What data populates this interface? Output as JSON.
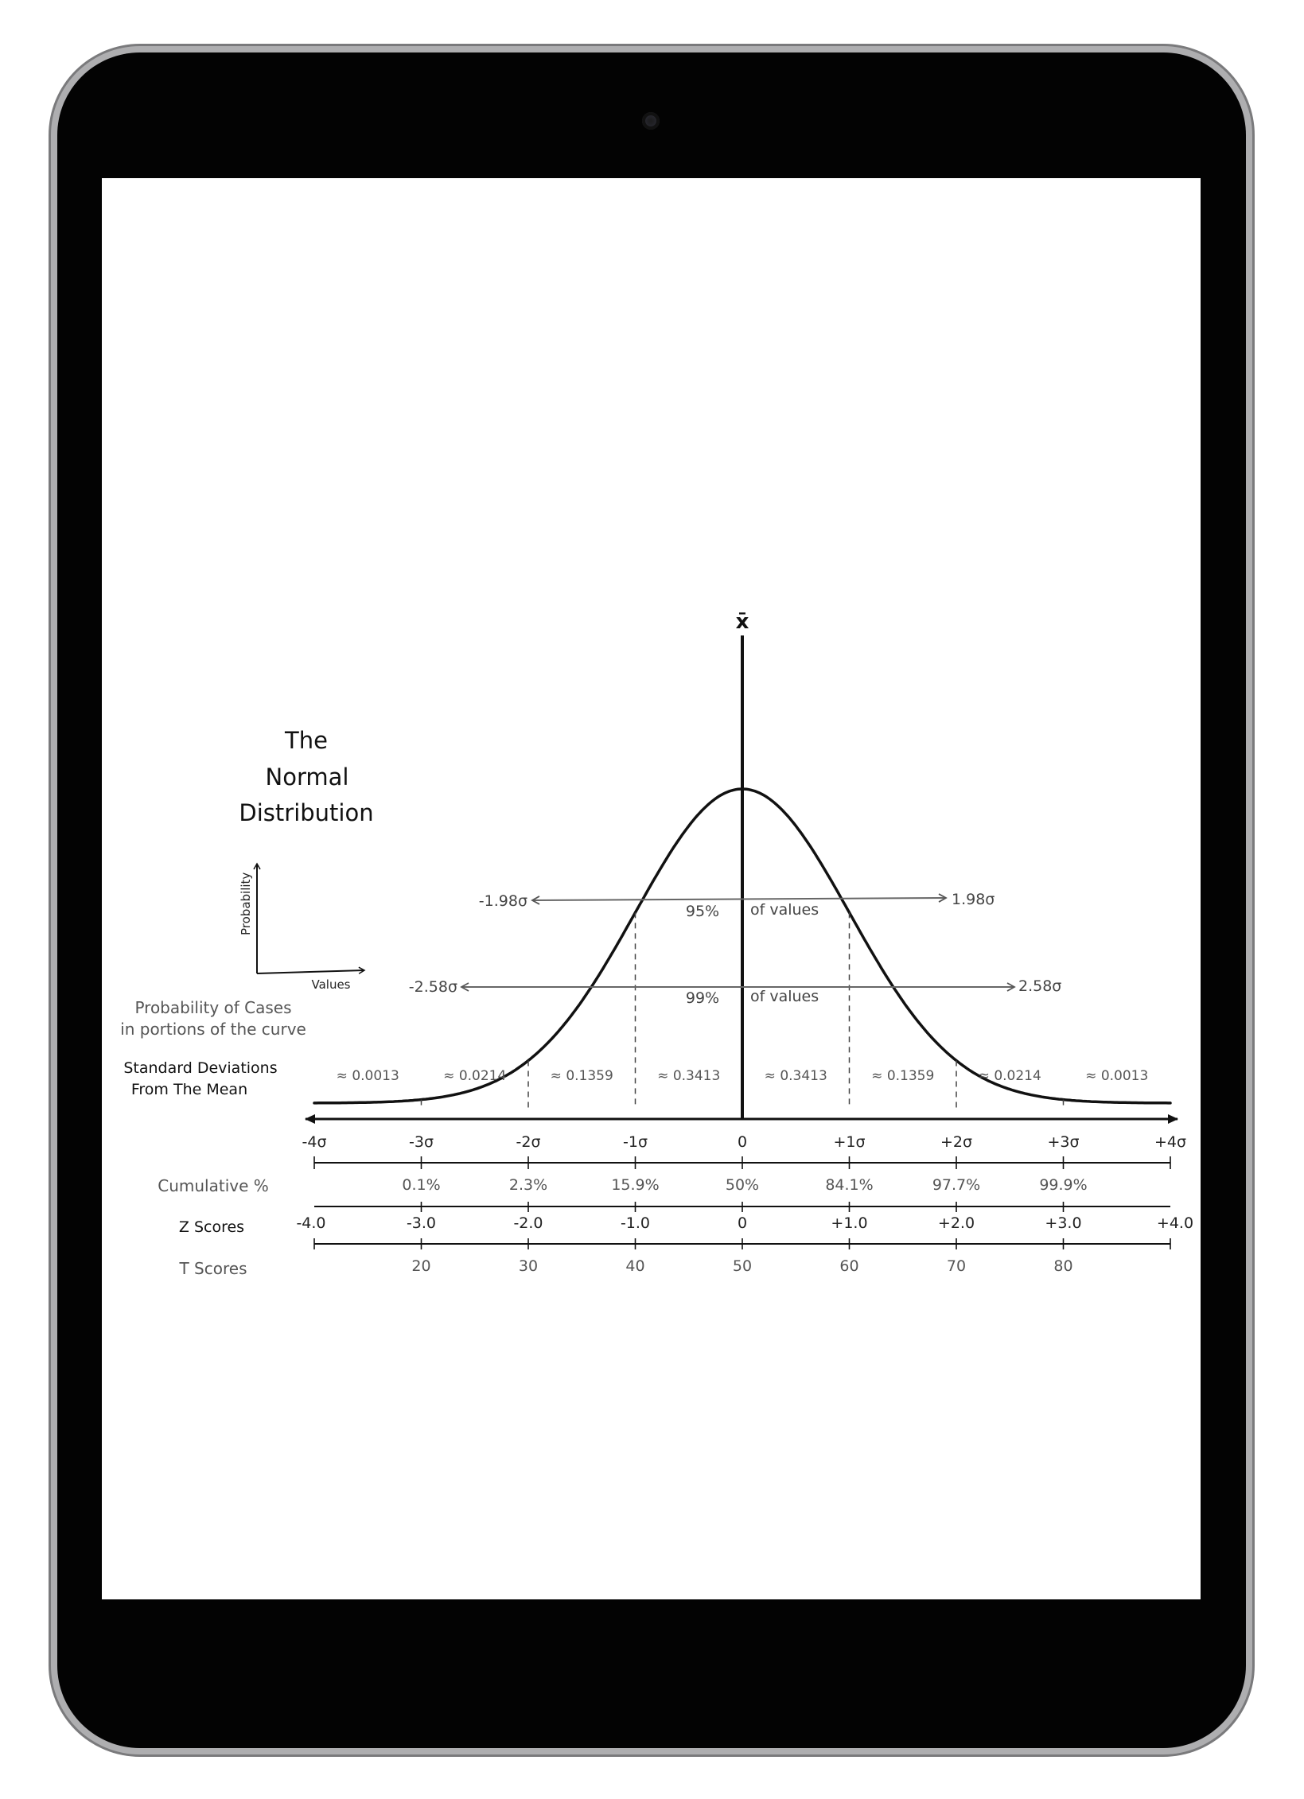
{
  "diagram": {
    "title_line1": "The",
    "title_line2": "Normal",
    "title_line3": "Distribution",
    "mean_symbol": "x̄",
    "mini_axes": {
      "ylabel": "Probability",
      "xlabel": "Values"
    },
    "prob_label_line1": "Probability of Cases",
    "prob_label_line2": "in portions of the curve",
    "probabilities": [
      "≈ 0.0013",
      "≈ 0.0214",
      "≈ 0.1359",
      "≈ 0.3413",
      "≈ 0.3413",
      "≈ 0.1359",
      "≈ 0.0214",
      "≈ 0.0013"
    ],
    "interval_95": {
      "left": "-1.98σ",
      "right": "1.98σ",
      "pct": "95%",
      "text": "of values"
    },
    "interval_99": {
      "left": "-2.58σ",
      "right": "2.58σ",
      "pct": "99%",
      "text": "of values"
    },
    "sd_label_line1": "Standard Deviations",
    "sd_label_line2": "From The Mean",
    "sd_ticks": [
      "-4σ",
      "-3σ",
      "-2σ",
      "-1σ",
      "0",
      "+1σ",
      "+2σ",
      "+3σ",
      "+4σ"
    ],
    "cumulative_label": "Cumulative %",
    "cumulative": [
      "0.1%",
      "2.3%",
      "15.9%",
      "50%",
      "84.1%",
      "97.7%",
      "99.9%"
    ],
    "z_label": "Z Scores",
    "z_scores": [
      "-4.0",
      "-3.0",
      "-2.0",
      "-1.0",
      "0",
      "+1.0",
      "+2.0",
      "+3.0",
      "+4.0"
    ],
    "t_label": "T Scores",
    "t_scores": [
      "20",
      "30",
      "40",
      "50",
      "60",
      "70",
      "80"
    ]
  }
}
